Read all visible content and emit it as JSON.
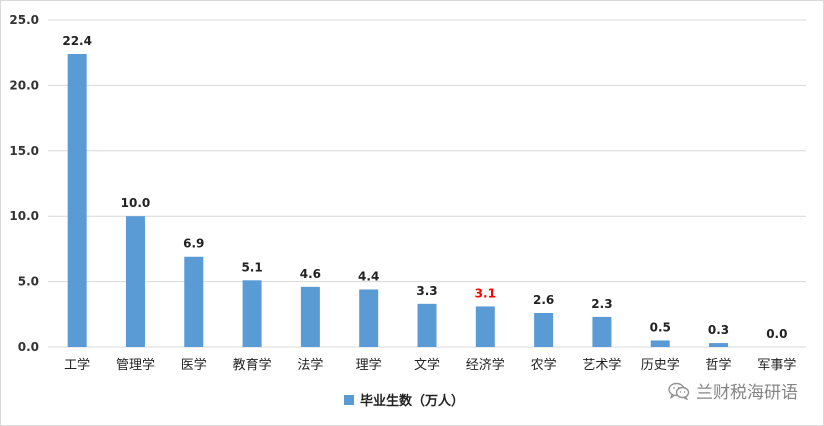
{
  "chart_data": {
    "type": "bar",
    "categories": [
      "工学",
      "管理学",
      "医学",
      "教育学",
      "法学",
      "理学",
      "文学",
      "经济学",
      "农学",
      "艺术学",
      "历史学",
      "哲学",
      "军事学"
    ],
    "series": [
      {
        "name": "毕业生数（万人）",
        "values": [
          22.4,
          10.0,
          6.9,
          5.1,
          4.6,
          4.4,
          3.3,
          3.1,
          2.6,
          2.3,
          0.5,
          0.3,
          0.0
        ],
        "data_labels": [
          "22.4",
          "10.0",
          "6.9",
          "5.1",
          "4.6",
          "4.4",
          "3.3",
          "3.1",
          "2.6",
          "2.3",
          "0.5",
          "0.3",
          "0.0"
        ],
        "color": "#5b9bd5"
      }
    ],
    "highlight_category": "经济学",
    "highlight_label_color": "#ff0000",
    "label_color": "#222222",
    "yticks": [
      "0.0",
      "5.0",
      "10.0",
      "15.0",
      "20.0",
      "25.0"
    ],
    "ylim": [
      0,
      25
    ],
    "grid": true,
    "gridline_color": "#d9d9d9",
    "legend_position": "bottom"
  },
  "watermark": {
    "text": "兰财税海研语",
    "icon": "wechat-icon"
  }
}
